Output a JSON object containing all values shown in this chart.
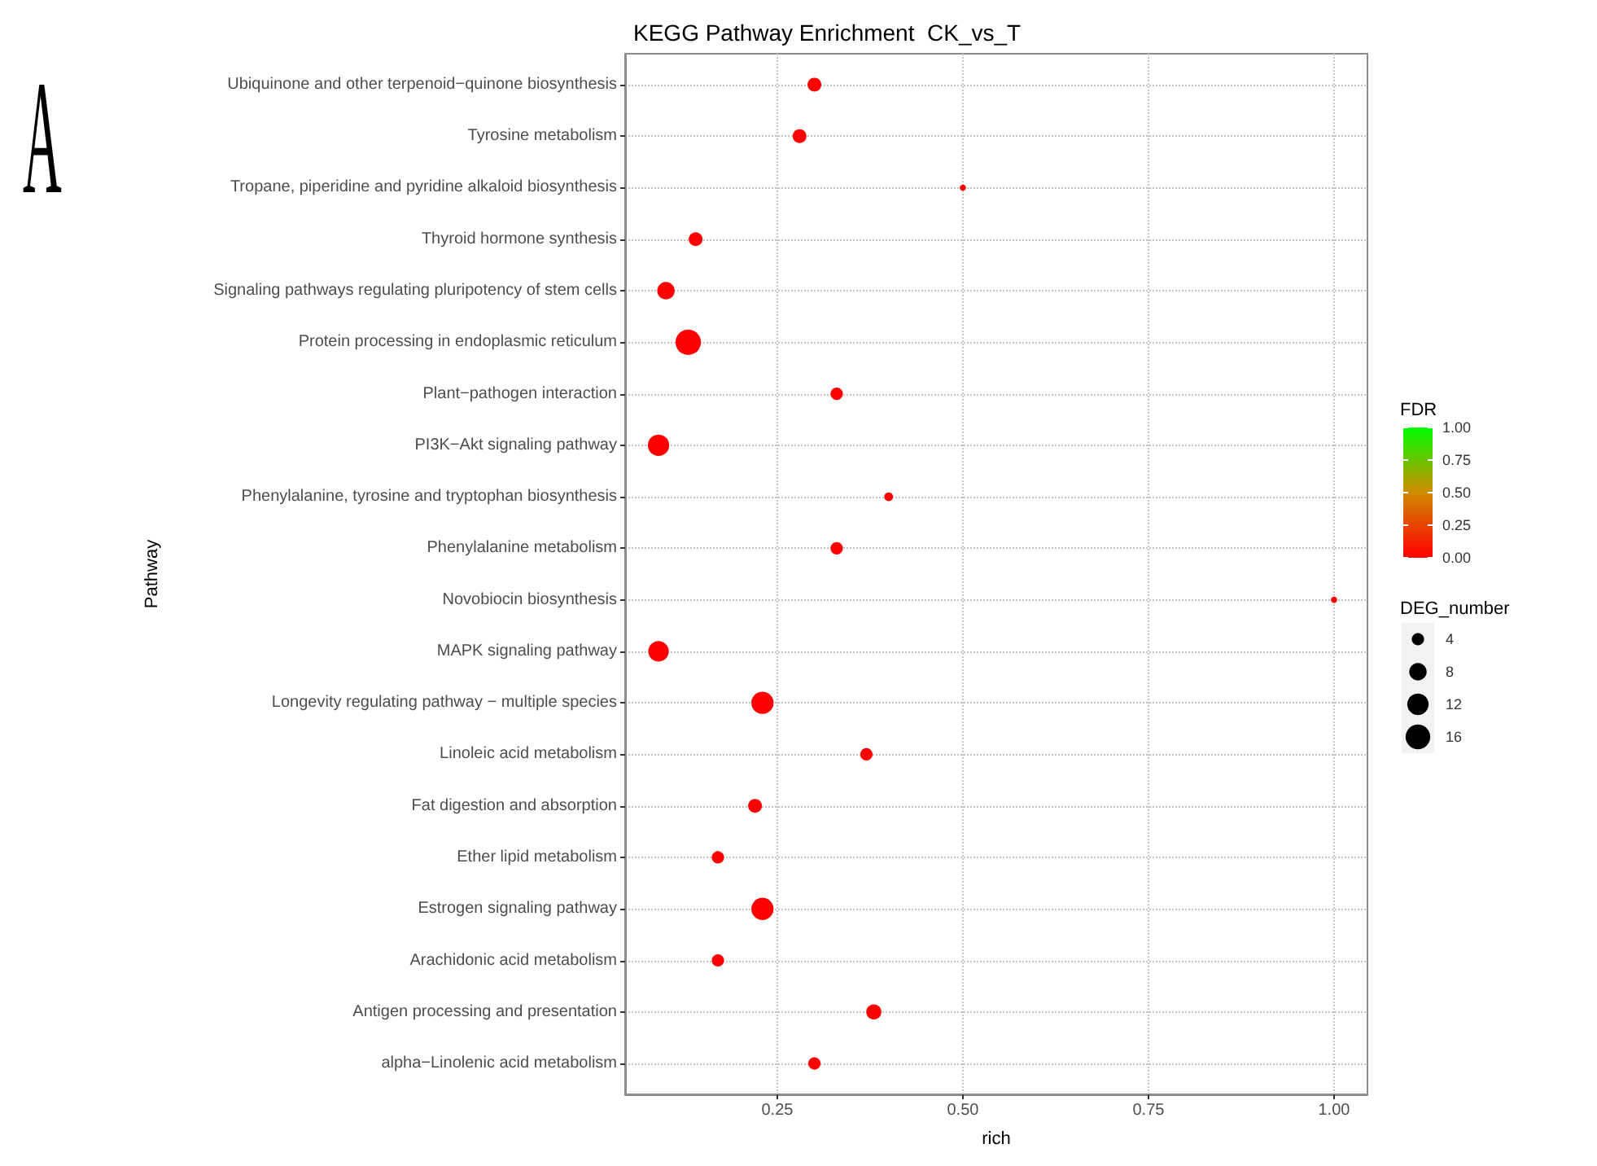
{
  "chart_data": {
    "type": "bubble",
    "title": "KEGG Pathway Enrichment  CK_vs_T",
    "xlabel": "rich",
    "ylabel": "Pathway",
    "clabel": "FDR",
    "legend_title": "DEG_number",
    "annotations": [
      "A"
    ],
    "orientation": "horizontal",
    "categories": [
      "Ubiquinone and other terpenoid−quinone biosynthesis",
      "Tyrosine metabolism",
      "Tropane, piperidine and pyridine alkaloid biosynthesis",
      "Thyroid hormone synthesis",
      "Signaling pathways regulating pluripotency of stem cells",
      "Protein processing in endoplasmic reticulum",
      "Plant−pathogen interaction",
      "PI3K−Akt signaling pathway",
      "Phenylalanine, tyrosine and tryptophan biosynthesis",
      "Phenylalanine metabolism",
      "Novobiocin biosynthesis",
      "MAPK signaling pathway",
      "Longevity regulating pathway − multiple species",
      "Linoleic acid metabolism",
      "Fat digestion and absorption",
      "Ether lipid metabolism",
      "Estrogen signaling pathway",
      "Arachidonic acid metabolism",
      "Antigen processing and presentation",
      "alpha−Linolenic acid metabolism"
    ],
    "values": [
      0.3,
      0.28,
      0.5,
      0.14,
      0.1,
      0.13,
      0.33,
      0.09,
      0.4,
      0.33,
      1.0,
      0.09,
      0.23,
      0.37,
      0.22,
      0.17,
      0.23,
      0.17,
      0.38,
      0.3
    ],
    "sizes": [
      5,
      5,
      1,
      5,
      8,
      17,
      4,
      12,
      2,
      4,
      1,
      11,
      13,
      4,
      5,
      4,
      13,
      4,
      6,
      4
    ],
    "cvalues": [
      0,
      0,
      0,
      0,
      0,
      0,
      0,
      0,
      0,
      0,
      0,
      0,
      0,
      0,
      0,
      0,
      0,
      0,
      0,
      0
    ],
    "size_legend": [
      4,
      8,
      12,
      16
    ],
    "clim": [
      0,
      1
    ],
    "cticks": [
      {
        "value": 0,
        "label": "0.00"
      },
      0.25,
      {
        "value": 0.5,
        "label": "0.50"
      },
      0.75,
      {
        "value": 1,
        "label": "1.00"
      }
    ],
    "xlim": [
      0.045,
      1.045
    ],
    "xticks": [
      0.25,
      {
        "value": 0.5,
        "label": "0.50"
      },
      0.75,
      {
        "value": 1,
        "label": "1.00"
      }
    ],
    "grid": true,
    "marker": "circle"
  }
}
